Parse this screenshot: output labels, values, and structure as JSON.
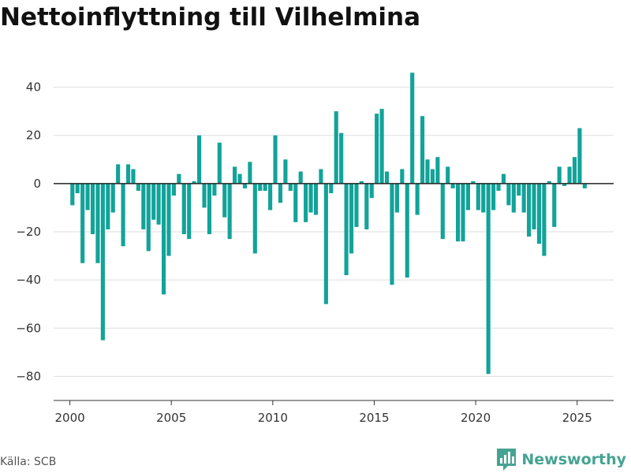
{
  "title": "Nettoinflyttning till Vilhelmina",
  "source": "Källa: SCB",
  "brand": {
    "name": "Newsworthy",
    "icon": "bar-chart-logo-icon",
    "color": "#46a392"
  },
  "colors": {
    "bar": "#12a39a",
    "grid": "#dddddd",
    "zero_line": "#222222",
    "axis": "#333333"
  },
  "chart_data": {
    "type": "bar",
    "title": "",
    "xlabel": "",
    "ylabel": "",
    "xlim": [
      1999.2,
      2026.8
    ],
    "ylim": [
      -90,
      50
    ],
    "yticks": [
      40,
      20,
      0,
      -20,
      -40,
      -60,
      -80
    ],
    "ytick_labels": [
      "40",
      "20",
      "0",
      "−20",
      "−40",
      "−60",
      "−80"
    ],
    "xticks": [
      2000,
      2005,
      2010,
      2015,
      2020,
      2025
    ],
    "xtick_labels": [
      "2000",
      "2005",
      "2010",
      "2015",
      "2020",
      "2025"
    ],
    "grid": "horizontal",
    "bar_width_years": 0.2,
    "series": [
      {
        "start_year": 2000.125,
        "step_years": 0.25,
        "values": [
          -9,
          -4,
          -33,
          -11,
          -21,
          -33,
          -65,
          -19,
          -12,
          8,
          -26,
          8,
          6,
          -3,
          -19,
          -28,
          -15,
          -17,
          -46,
          -30,
          -5,
          4,
          -21,
          -23,
          1,
          20,
          -10,
          -21,
          -5,
          17,
          -14,
          -23,
          7,
          4,
          -2,
          9,
          -29,
          -3,
          -3,
          -11,
          20,
          -8,
          10,
          -3,
          -16,
          5,
          -16,
          -12,
          -13,
          6,
          -50,
          -4,
          30,
          21,
          -38,
          -29,
          -18,
          1,
          -19,
          -6,
          29,
          31,
          5,
          -42,
          -12,
          6,
          -39,
          46,
          -13,
          28,
          10,
          6,
          11,
          -23,
          7,
          -2,
          -24,
          -24,
          -11,
          1,
          -11,
          -12,
          -79,
          -11,
          -3,
          4,
          -9,
          -12,
          -5,
          -12,
          -22,
          -19,
          -25,
          -30,
          1,
          -18,
          7,
          -1,
          7,
          11,
          23,
          -2
        ]
      }
    ]
  }
}
